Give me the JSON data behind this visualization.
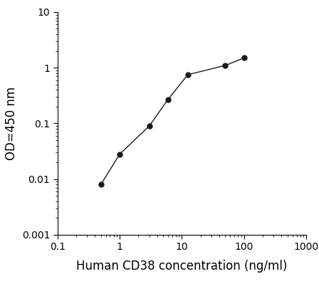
{
  "x": [
    0.5,
    1.0,
    3.0,
    6.0,
    12.5,
    50.0,
    100.0
  ],
  "y": [
    0.008,
    0.028,
    0.09,
    0.27,
    0.75,
    1.1,
    1.5
  ],
  "xlim": [
    0.1,
    1000
  ],
  "ylim": [
    0.001,
    10
  ],
  "xlabel": "Human CD38 concentration (ng/ml)",
  "ylabel": "OD=450 nm",
  "line_color": "#1a1a1a",
  "marker_color": "#1a1a1a",
  "marker_size": 5,
  "line_width": 1.0,
  "background_color": "#ffffff",
  "xtick_vals": [
    0.1,
    1,
    10,
    100,
    1000
  ],
  "xtick_labels": [
    "0.1",
    "1",
    "10",
    "100",
    "1000"
  ],
  "ytick_vals": [
    0.001,
    0.01,
    0.1,
    1,
    10
  ],
  "ytick_labels": [
    "0.001",
    "0.01",
    "0.1",
    "1",
    "10"
  ],
  "xlabel_fontsize": 12,
  "ylabel_fontsize": 12,
  "tick_fontsize": 10
}
